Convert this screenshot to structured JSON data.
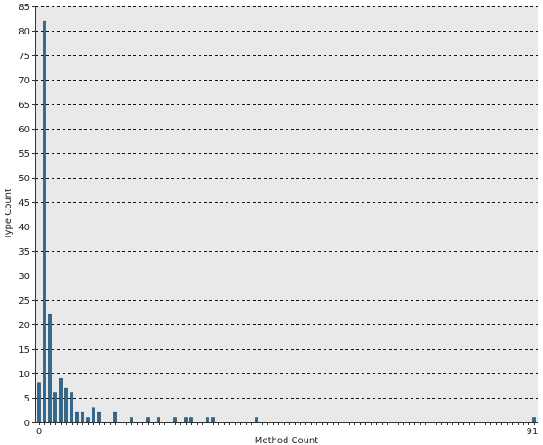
{
  "chart_data": {
    "type": "bar",
    "title": "",
    "xlabel": "Method Count",
    "ylabel": "Type Count",
    "xlim": [
      0,
      91
    ],
    "ylim": [
      0,
      85
    ],
    "y_ticks": [
      0,
      5,
      10,
      15,
      20,
      25,
      30,
      35,
      40,
      45,
      50,
      55,
      60,
      65,
      70,
      75,
      80,
      85
    ],
    "x_tick_labels": [
      "0",
      "91"
    ],
    "grid": "horizontal dashed",
    "bar_color": "#2a6a94",
    "plot_background": "#e9e9e9",
    "x": [
      0,
      1,
      2,
      3,
      4,
      5,
      6,
      7,
      8,
      9,
      10,
      11,
      12,
      13,
      14,
      15,
      16,
      17,
      18,
      19,
      20,
      21,
      22,
      23,
      24,
      25,
      26,
      27,
      28,
      29,
      30,
      31,
      32,
      33,
      34,
      35,
      36,
      37,
      38,
      39,
      40,
      41,
      42,
      43,
      44,
      45,
      46,
      47,
      48,
      49,
      50,
      51,
      52,
      53,
      54,
      55,
      56,
      57,
      58,
      59,
      60,
      61,
      62,
      63,
      64,
      65,
      66,
      67,
      68,
      69,
      70,
      71,
      72,
      73,
      74,
      75,
      76,
      77,
      78,
      79,
      80,
      81,
      82,
      83,
      84,
      85,
      86,
      87,
      88,
      89,
      90,
      91
    ],
    "values": [
      8,
      82,
      22,
      6,
      9,
      7,
      6,
      2,
      2,
      1,
      3,
      2,
      0,
      0,
      2,
      0,
      0,
      1,
      0,
      0,
      1,
      0,
      1,
      0,
      0,
      1,
      0,
      1,
      1,
      0,
      0,
      1,
      1,
      0,
      0,
      0,
      0,
      0,
      0,
      0,
      1,
      0,
      0,
      0,
      0,
      0,
      0,
      0,
      0,
      0,
      0,
      0,
      0,
      0,
      0,
      0,
      0,
      0,
      0,
      0,
      0,
      0,
      0,
      0,
      0,
      0,
      0,
      0,
      0,
      0,
      0,
      0,
      0,
      0,
      0,
      0,
      0,
      0,
      0,
      0,
      0,
      0,
      0,
      0,
      0,
      0,
      0,
      0,
      0,
      0,
      0,
      1
    ]
  }
}
